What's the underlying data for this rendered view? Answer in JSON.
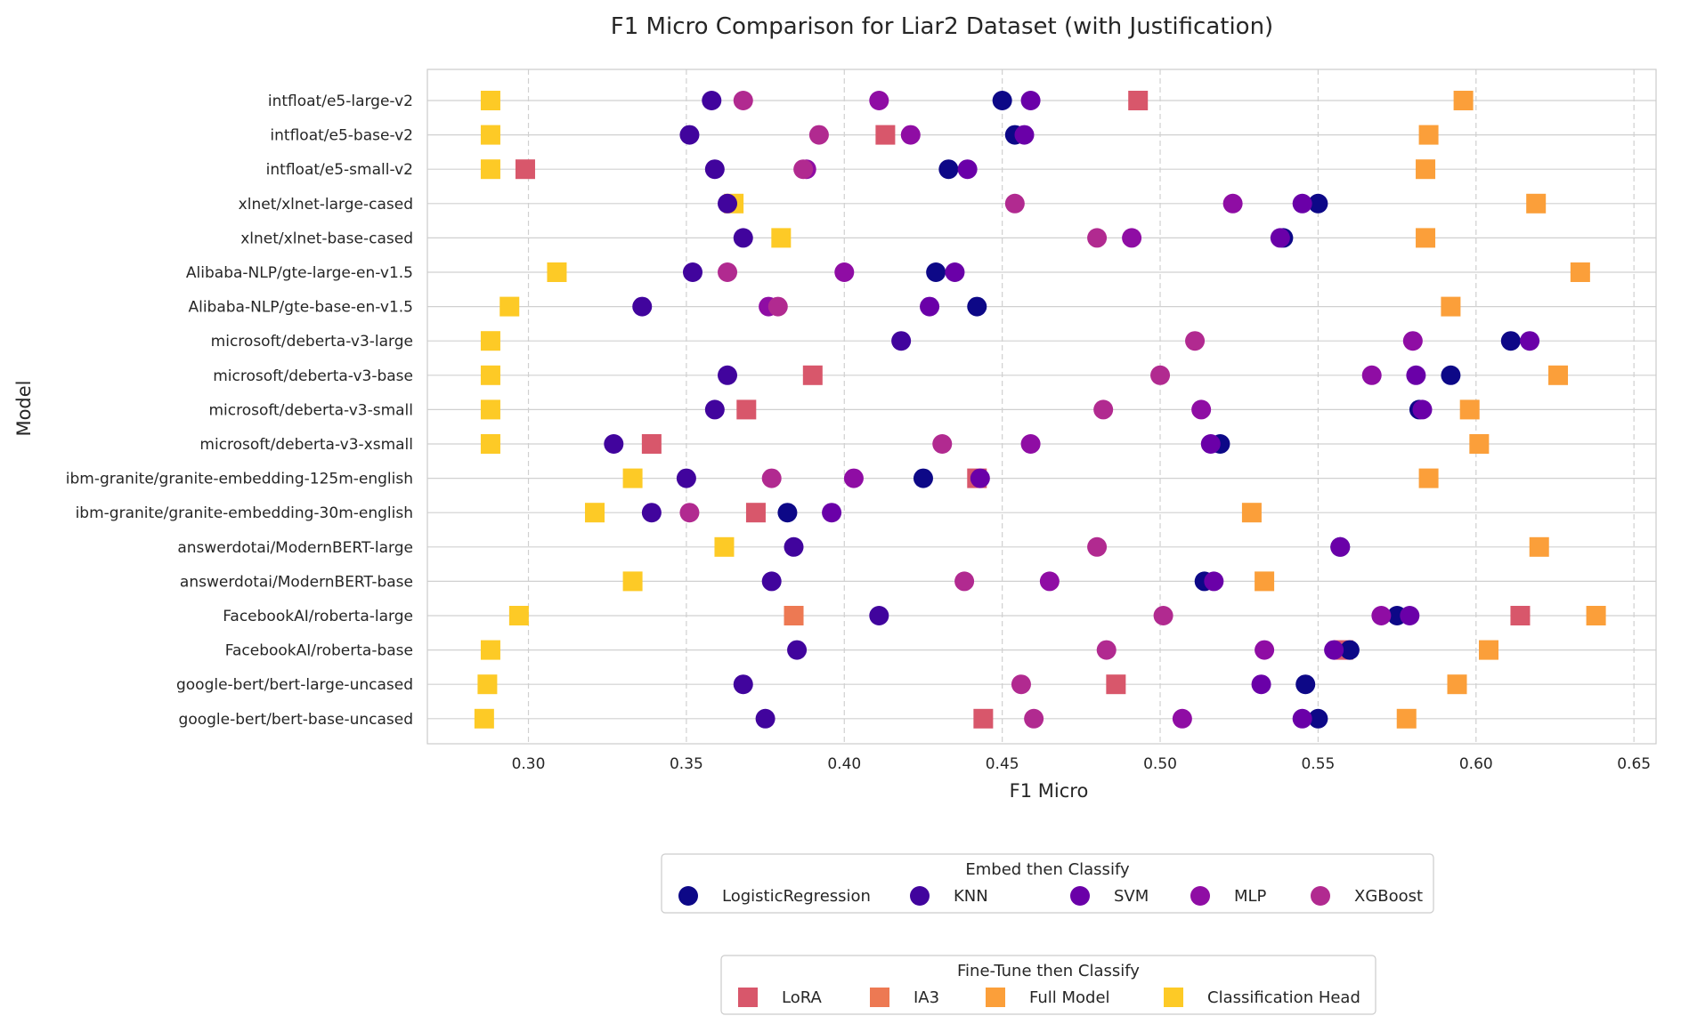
{
  "chart_data": {
    "type": "scatter",
    "title": "F1 Micro Comparison for Liar2 Dataset (with Justification)",
    "xlabel": "F1 Micro",
    "ylabel": "Model",
    "xlim": [
      0.268,
      0.657
    ],
    "xticks": [
      0.3,
      0.35,
      0.4,
      0.45,
      0.5,
      0.55,
      0.6,
      0.65
    ],
    "xtick_labels": [
      "0.30",
      "0.35",
      "0.40",
      "0.45",
      "0.50",
      "0.55",
      "0.60",
      "0.65"
    ],
    "grid": true,
    "models": [
      "intfloat/e5-large-v2",
      "intfloat/e5-base-v2",
      "intfloat/e5-small-v2",
      "xlnet/xlnet-large-cased",
      "xlnet/xlnet-base-cased",
      "Alibaba-NLP/gte-large-en-v1.5",
      "Alibaba-NLP/gte-base-en-v1.5",
      "microsoft/deberta-v3-large",
      "microsoft/deberta-v3-base",
      "microsoft/deberta-v3-small",
      "microsoft/deberta-v3-xsmall",
      "ibm-granite/granite-embedding-125m-english",
      "ibm-granite/granite-embedding-30m-english",
      "answerdotai/ModernBERT-large",
      "answerdotai/ModernBERT-base",
      "FacebookAI/roberta-large",
      "FacebookAI/roberta-base",
      "google-bert/bert-large-uncased",
      "google-bert/bert-base-uncased"
    ],
    "legends": [
      {
        "title": "Embed then Classify",
        "placement": "below-center",
        "items": [
          {
            "name": "LogisticRegression",
            "color": "#0d0887",
            "marker": "circle"
          },
          {
            "name": "KNN",
            "color": "#41049d",
            "marker": "circle"
          },
          {
            "name": "SVM",
            "color": "#6a00a8",
            "marker": "circle"
          },
          {
            "name": "MLP",
            "color": "#8f0da4",
            "marker": "circle"
          },
          {
            "name": "XGBoost",
            "color": "#b12a90",
            "marker": "circle"
          }
        ]
      },
      {
        "title": "Fine-Tune then Classify",
        "placement": "bottom-center",
        "items": [
          {
            "name": "LoRA",
            "color": "#d8576b",
            "marker": "square"
          },
          {
            "name": "IA3",
            "color": "#ed7953",
            "marker": "square"
          },
          {
            "name": "Full Model",
            "color": "#fb9f3a",
            "marker": "square"
          },
          {
            "name": "Classification Head",
            "color": "#fdca26",
            "marker": "square"
          }
        ]
      }
    ],
    "series": [
      {
        "name": "LogisticRegression",
        "color": "#0d0887",
        "marker": "circle",
        "values": [
          0.45,
          0.454,
          0.433,
          0.55,
          0.539,
          0.429,
          0.442,
          0.611,
          0.592,
          0.582,
          0.519,
          0.425,
          0.382,
          0.557,
          0.514,
          0.575,
          0.56,
          0.546,
          0.55
        ]
      },
      {
        "name": "KNN",
        "color": "#41049d",
        "marker": "circle",
        "values": [
          0.358,
          0.351,
          0.359,
          0.363,
          0.368,
          0.352,
          0.336,
          0.418,
          0.363,
          0.359,
          0.327,
          0.35,
          0.339,
          0.384,
          0.377,
          0.411,
          0.385,
          0.368,
          0.375
        ]
      },
      {
        "name": "SVM",
        "color": "#6a00a8",
        "marker": "circle",
        "values": [
          0.459,
          0.457,
          0.439,
          0.545,
          0.538,
          0.435,
          0.427,
          0.617,
          0.581,
          0.583,
          0.516,
          0.443,
          0.396,
          0.557,
          0.517,
          0.579,
          0.555,
          0.532,
          0.545
        ]
      },
      {
        "name": "MLP",
        "color": "#8f0da4",
        "marker": "circle",
        "values": [
          0.411,
          0.421,
          0.388,
          0.523,
          0.491,
          0.4,
          0.376,
          0.58,
          0.567,
          0.513,
          0.459,
          0.403,
          null,
          null,
          0.465,
          0.57,
          0.533,
          null,
          0.507
        ]
      },
      {
        "name": "XGBoost",
        "color": "#b12a90",
        "marker": "circle",
        "values": [
          0.368,
          0.392,
          0.387,
          0.454,
          0.48,
          0.363,
          0.379,
          0.511,
          0.5,
          0.482,
          0.431,
          0.377,
          0.351,
          0.48,
          0.438,
          0.501,
          0.483,
          0.456,
          0.46
        ]
      },
      {
        "name": "LoRA",
        "color": "#d8576b",
        "marker": "square",
        "values": [
          0.493,
          0.413,
          0.299,
          null,
          null,
          null,
          null,
          null,
          0.39,
          0.369,
          0.339,
          0.442,
          0.372,
          null,
          null,
          0.614,
          0.558,
          0.486,
          0.444
        ]
      },
      {
        "name": "IA3",
        "color": "#ed7953",
        "marker": "square",
        "values": [
          null,
          null,
          null,
          null,
          null,
          null,
          null,
          null,
          null,
          null,
          null,
          null,
          null,
          null,
          null,
          0.384,
          null,
          null,
          null
        ]
      },
      {
        "name": "Full Model",
        "color": "#fb9f3a",
        "marker": "square",
        "values": [
          0.596,
          0.585,
          0.584,
          0.619,
          0.584,
          0.633,
          0.592,
          null,
          0.626,
          0.598,
          0.601,
          0.585,
          0.529,
          0.62,
          0.533,
          0.638,
          0.604,
          0.594,
          0.578
        ]
      },
      {
        "name": "Classification Head",
        "color": "#fdca26",
        "marker": "square",
        "values": [
          0.288,
          0.288,
          0.288,
          0.365,
          0.38,
          0.309,
          0.294,
          0.288,
          0.288,
          0.288,
          0.288,
          0.333,
          0.321,
          0.362,
          0.333,
          0.297,
          0.288,
          0.287,
          0.286
        ]
      }
    ]
  }
}
